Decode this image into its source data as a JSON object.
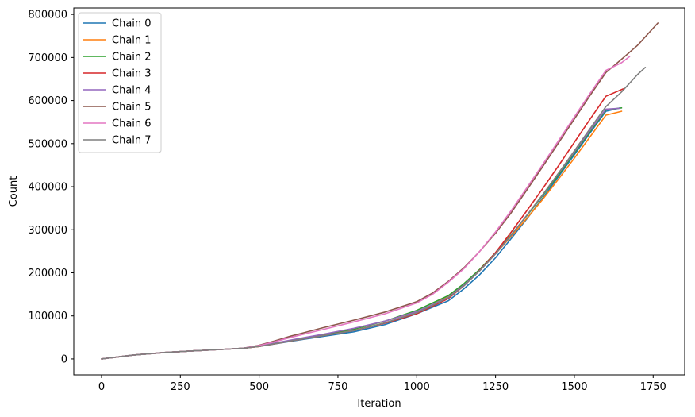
{
  "chart_data": {
    "type": "line",
    "title": "",
    "xlabel": "Iteration",
    "ylabel": "Count",
    "xlim": [
      -88,
      1850
    ],
    "ylim": [
      -37000,
      815000
    ],
    "xticks": [
      0,
      250,
      500,
      750,
      1000,
      1250,
      1500,
      1750
    ],
    "yticks": [
      0,
      100000,
      200000,
      300000,
      400000,
      500000,
      600000,
      700000,
      800000
    ],
    "grid": false,
    "legend_position": "top-left",
    "series": [
      {
        "name": "Chain 0",
        "color": "#1f77b4",
        "x": [
          0,
          100,
          200,
          300,
          400,
          450,
          500,
          600,
          700,
          800,
          900,
          1000,
          1100,
          1150,
          1200,
          1250,
          1300,
          1350,
          1400,
          1450,
          1500,
          1550,
          1600,
          1645
        ],
        "y": [
          0,
          9000,
          15000,
          19000,
          23000,
          25000,
          29000,
          41000,
          52000,
          63000,
          80000,
          105000,
          135000,
          163000,
          196000,
          235000,
          280000,
          326000,
          374000,
          424000,
          474000,
          525000,
          575000,
          583000
        ]
      },
      {
        "name": "Chain 1",
        "color": "#ff7f0e",
        "x": [
          0,
          100,
          200,
          300,
          400,
          450,
          500,
          600,
          700,
          800,
          900,
          1000,
          1100,
          1150,
          1200,
          1250,
          1300,
          1350,
          1400,
          1450,
          1500,
          1550,
          1600,
          1650
        ],
        "y": [
          0,
          9000,
          15000,
          19000,
          23000,
          25000,
          29000,
          42000,
          54000,
          66000,
          84000,
          108000,
          145000,
          172000,
          205000,
          244000,
          285000,
          327000,
          371000,
          418000,
          466000,
          516000,
          566000,
          575000
        ]
      },
      {
        "name": "Chain 2",
        "color": "#2ca02c",
        "x": [
          0,
          100,
          200,
          300,
          400,
          450,
          500,
          600,
          700,
          800,
          900,
          1000,
          1100,
          1150,
          1200,
          1250,
          1300,
          1350,
          1400,
          1450,
          1500,
          1550,
          1600,
          1650
        ],
        "y": [
          0,
          9000,
          15000,
          19000,
          23000,
          25000,
          30000,
          43000,
          56000,
          69000,
          88000,
          113000,
          147000,
          175000,
          208000,
          247000,
          289000,
          333000,
          380000,
          428000,
          478000,
          528000,
          578000,
          583000
        ]
      },
      {
        "name": "Chain 3",
        "color": "#d62728",
        "x": [
          0,
          100,
          200,
          300,
          400,
          450,
          500,
          600,
          700,
          800,
          900,
          1000,
          1100,
          1150,
          1200,
          1250,
          1300,
          1350,
          1400,
          1450,
          1500,
          1550,
          1600,
          1655
        ],
        "y": [
          0,
          9000,
          15000,
          19000,
          23000,
          25000,
          29000,
          42000,
          54000,
          66000,
          83000,
          105000,
          140000,
          170000,
          206000,
          247000,
          295000,
          345000,
          396000,
          449000,
          503000,
          557000,
          610000,
          627000
        ]
      },
      {
        "name": "Chain 4",
        "color": "#9467bd",
        "x": [
          0,
          100,
          200,
          300,
          400,
          450,
          500,
          600,
          700,
          800,
          900,
          1000,
          1100,
          1150,
          1200,
          1250,
          1300,
          1350,
          1400,
          1450,
          1500,
          1550,
          1600,
          1645
        ],
        "y": [
          0,
          9000,
          15000,
          19000,
          23000,
          25000,
          30000,
          44000,
          57000,
          71000,
          88000,
          110000,
          143000,
          172000,
          205000,
          244000,
          288000,
          334000,
          382000,
          431000,
          481000,
          531000,
          580000,
          582000
        ]
      },
      {
        "name": "Chain 5",
        "color": "#8c564b",
        "x": [
          0,
          100,
          200,
          300,
          400,
          450,
          500,
          550,
          600,
          700,
          800,
          900,
          1000,
          1050,
          1100,
          1150,
          1200,
          1250,
          1300,
          1350,
          1400,
          1450,
          1500,
          1550,
          1600,
          1650,
          1700,
          1765
        ],
        "y": [
          0,
          9000,
          15000,
          19000,
          23000,
          25000,
          32000,
          42000,
          53000,
          72000,
          90000,
          109000,
          133000,
          153000,
          180000,
          212000,
          250000,
          292000,
          340000,
          393000,
          447000,
          502000,
          557000,
          612000,
          665000,
          696000,
          728000,
          780000
        ]
      },
      {
        "name": "Chain 6",
        "color": "#e377c2",
        "x": [
          0,
          100,
          200,
          300,
          400,
          450,
          500,
          550,
          600,
          700,
          800,
          900,
          1000,
          1050,
          1100,
          1150,
          1200,
          1250,
          1300,
          1350,
          1400,
          1450,
          1500,
          1550,
          1600,
          1650,
          1675
        ],
        "y": [
          0,
          9000,
          15000,
          19000,
          23000,
          25000,
          31000,
          40000,
          50000,
          68000,
          86000,
          105000,
          130000,
          150000,
          178000,
          210000,
          250000,
          295000,
          345000,
          398000,
          452000,
          507000,
          562000,
          617000,
          670000,
          688000,
          702000
        ]
      },
      {
        "name": "Chain 7",
        "color": "#7f7f7f",
        "x": [
          0,
          100,
          200,
          300,
          400,
          450,
          500,
          600,
          700,
          800,
          900,
          1000,
          1100,
          1150,
          1200,
          1250,
          1300,
          1350,
          1400,
          1450,
          1500,
          1550,
          1600,
          1650,
          1700,
          1725
        ],
        "y": [
          0,
          9000,
          15000,
          19000,
          23000,
          25000,
          29000,
          42000,
          54000,
          66000,
          84000,
          107000,
          142000,
          170000,
          205000,
          244000,
          288000,
          334000,
          382000,
          432000,
          483000,
          535000,
          586000,
          620000,
          660000,
          677000
        ]
      }
    ]
  }
}
